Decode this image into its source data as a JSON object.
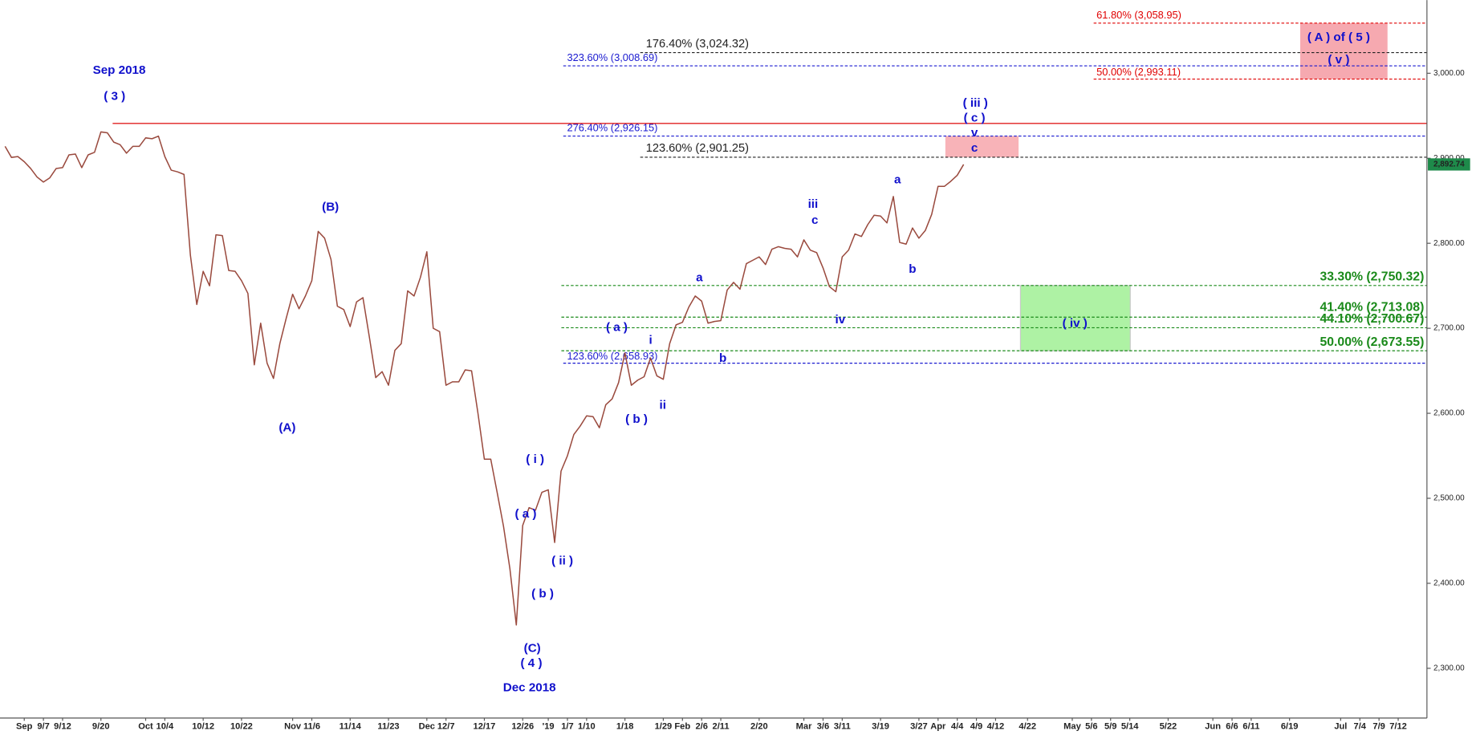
{
  "chart_data": {
    "type": "line",
    "categories": [
      null,
      null,
      null,
      "Sep",
      null,
      null,
      "9/7",
      null,
      null,
      "9/12",
      null,
      null,
      null,
      null,
      null,
      "9/20",
      null,
      null,
      null,
      null,
      null,
      null,
      "Oct",
      null,
      null,
      "10/4",
      null,
      null,
      null,
      null,
      null,
      "10/12",
      null,
      null,
      null,
      null,
      null,
      "10/22",
      null,
      null,
      null,
      null,
      null,
      null,
      null,
      "Nov",
      null,
      null,
      "11/6",
      null,
      null,
      null,
      null,
      null,
      "11/14",
      null,
      null,
      null,
      null,
      null,
      "11/23",
      null,
      null,
      null,
      null,
      null,
      "Dec",
      null,
      null,
      "12/7",
      null,
      null,
      null,
      null,
      null,
      "12/17",
      null,
      null,
      null,
      null,
      null,
      "12/26",
      null,
      null,
      null,
      "'19",
      null,
      null,
      "1/7",
      null,
      null,
      "1/10",
      null,
      null,
      null,
      null,
      null,
      "1/18",
      null,
      null,
      null,
      null,
      null,
      "1/29",
      null,
      null,
      "Feb",
      null,
      null,
      "2/6",
      null,
      null,
      "2/11",
      null,
      null,
      null,
      null,
      null,
      "2/20",
      null,
      null,
      null,
      null,
      null,
      null,
      "Mar",
      null,
      null,
      "3/6",
      null,
      null,
      "3/11",
      null,
      null,
      null,
      null,
      null,
      "3/19",
      null,
      null,
      null,
      null,
      null,
      "3/27",
      null,
      null,
      "Apr",
      null,
      null,
      "4/4",
      null,
      null,
      "4/9",
      null,
      null,
      "4/12",
      null,
      null,
      null,
      null,
      "4/22",
      null,
      null,
      null,
      null,
      null,
      null,
      "May",
      null,
      null,
      "5/6",
      null,
      null,
      "5/9",
      null,
      null,
      "5/14",
      null,
      null,
      null,
      null,
      null,
      "5/22",
      null,
      null,
      null,
      null,
      null,
      null,
      "Jun",
      null,
      null,
      "6/6",
      null,
      null,
      "6/11",
      null,
      null,
      null,
      null,
      null,
      "6/19",
      null,
      null,
      null,
      null,
      null,
      null,
      null,
      "Jul",
      null,
      null,
      "7/4",
      null,
      null,
      "7/9",
      null,
      null,
      "7/12",
      null,
      null,
      null,
      null
    ],
    "values": [
      2914,
      2901,
      2902,
      2896,
      2888,
      2878,
      2872,
      2877,
      2888,
      2889,
      2904,
      2905,
      2889,
      2904,
      2907,
      2931,
      2930,
      2919,
      2916,
      2906,
      2914,
      2914,
      2924,
      2923,
      2926,
      2902,
      2886,
      2884,
      2881,
      2786,
      2728,
      2767,
      2750,
      2810,
      2809,
      2768,
      2767,
      2756,
      2741,
      2657,
      2706,
      2659,
      2641,
      2682,
      2712,
      2740,
      2723,
      2738,
      2756,
      2814,
      2806,
      2781,
      2726,
      2722,
      2702,
      2731,
      2736,
      2690,
      2642,
      2649,
      2633,
      2674,
      2682,
      2744,
      2738,
      2760,
      2790,
      2700,
      2696,
      2633,
      2637,
      2637,
      2651,
      2650,
      2600,
      2546,
      2546,
      2507,
      2467,
      2417,
      2351,
      2468,
      2489,
      2486,
      2507,
      2510,
      2448,
      2532,
      2550,
      2575,
      2585,
      2597,
      2596,
      2583,
      2610,
      2617,
      2636,
      2671,
      2633,
      2639,
      2643,
      2665,
      2644,
      2640,
      2682,
      2704,
      2707,
      2725,
      2738,
      2732,
      2706,
      2708,
      2709,
      2745,
      2754,
      2746,
      2776,
      2780,
      2784,
      2775,
      2793,
      2796,
      2794,
      2793,
      2784,
      2804,
      2792,
      2789,
      2771,
      2749,
      2743,
      2784,
      2792,
      2811,
      2808,
      2822,
      2833,
      2832,
      2824,
      2855,
      2801,
      2799,
      2818,
      2806,
      2815,
      2834,
      2867,
      2867,
      2873,
      2880,
      2892.74,
      null,
      null,
      null,
      null,
      null,
      null,
      null,
      null,
      null,
      null,
      null,
      null,
      null,
      null,
      null,
      null,
      null,
      null,
      null,
      null,
      null,
      null,
      null,
      null,
      null,
      null,
      null,
      null,
      null,
      null,
      null,
      null,
      null,
      null,
      null,
      null,
      null,
      null,
      null,
      null,
      null,
      null,
      null,
      null,
      null,
      null,
      null,
      null,
      null,
      null,
      null,
      null,
      null,
      null,
      null,
      null,
      null,
      null,
      null,
      null,
      null,
      null,
      null,
      null,
      null,
      null,
      null,
      null,
      null,
      null,
      null,
      null
    ],
    "color": "#9a4a3e",
    "ylim": [
      2241.5,
      3086.1
    ],
    "yticks": [
      {
        "value": 2300,
        "label": "2,300.00"
      },
      {
        "value": 2400,
        "label": "2,400.00"
      },
      {
        "value": 2500,
        "label": "2,500.00"
      },
      {
        "value": 2600,
        "label": "2,600.00"
      },
      {
        "value": 2700,
        "label": "2,700.00"
      },
      {
        "value": 2800,
        "label": "2,800.00"
      },
      {
        "value": 2900,
        "label": "2,900.00"
      },
      {
        "value": 3000,
        "label": "3,000.00"
      }
    ],
    "last_price": {
      "value": 2892.74,
      "label": "2,892.74",
      "color": "#1e8a4a"
    },
    "resistance": {
      "value": 2941,
      "color": "#e02020"
    },
    "levels": [
      {
        "label": "61.80% (3,058.95)",
        "value": 3058.95,
        "color": "#e00000"
      },
      {
        "label": "176.40% (3,024.32)",
        "value": 3024.32,
        "color": "#222222"
      },
      {
        "label": "323.60% (3,008.69)",
        "value": 3008.69,
        "color": "#1a1ad0"
      },
      {
        "label": "50.00% (2,993.11)",
        "value": 2993.11,
        "color": "#e00000"
      },
      {
        "label": "276.40% (2,926.15)",
        "value": 2926.15,
        "color": "#1a1ad0"
      },
      {
        "label": "123.60% (2,901.25)",
        "value": 2901.25,
        "color": "#222222"
      },
      {
        "label": "33.30% (2,750.32)",
        "value": 2750.32,
        "color": "#1a8a1a"
      },
      {
        "label": "41.40% (2,713.08)",
        "value": 2713.08,
        "color": "#1a8a1a"
      },
      {
        "label": "44.10% (2,700.67)",
        "value": 2700.67,
        "color": "#1a8a1a"
      },
      {
        "label": "50.00% (2,673.55)",
        "value": 2673.55,
        "color": "#1a8a1a"
      },
      {
        "label": "123.60% (2,658.93)",
        "value": 2658.93,
        "color": "#1a1ad0"
      }
    ],
    "annotations": [
      "Sep 2018",
      "( 3 )",
      "(A)",
      "(B)",
      "(C)",
      "( 4 )",
      "Dec 2018",
      "( i )",
      "( a )",
      "( b )",
      "( ii )",
      "( a )",
      "( b )",
      "i",
      "ii",
      "a",
      "b",
      "iii",
      "c",
      "iv",
      "a",
      "b",
      "( iii )",
      "( c )",
      "v",
      "c",
      "( iv )",
      "( A ) of ( 5 )",
      "( v )"
    ],
    "annotation_color": "#1010cc"
  }
}
